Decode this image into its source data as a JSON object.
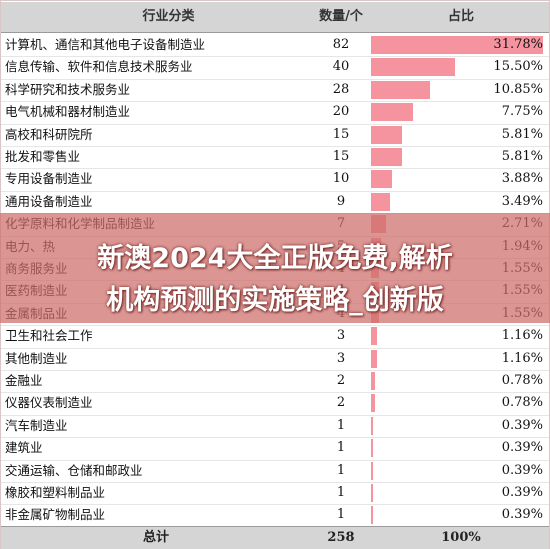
{
  "chart_data": {
    "type": "table",
    "columns": [
      "行业分类",
      "数量/个",
      "占比"
    ],
    "rows": [
      {
        "industry": "计算机、通信和其他电子设备制造业",
        "count": "82",
        "share": "31.78%",
        "share_value": 31.78
      },
      {
        "industry": "信息传输、软件和信息技术服务业",
        "count": "40",
        "share": "15.50%",
        "share_value": 15.5
      },
      {
        "industry": "科学研究和技术服务业",
        "count": "28",
        "share": "10.85%",
        "share_value": 10.85
      },
      {
        "industry": "电气机械和器材制造业",
        "count": "20",
        "share": "7.75%",
        "share_value": 7.75
      },
      {
        "industry": "高校和科研院所",
        "count": "15",
        "share": "5.81%",
        "share_value": 5.81
      },
      {
        "industry": "批发和零售业",
        "count": "15",
        "share": "5.81%",
        "share_value": 5.81
      },
      {
        "industry": "专用设备制造业",
        "count": "10",
        "share": "3.88%",
        "share_value": 3.88
      },
      {
        "industry": "通用设备制造业",
        "count": "9",
        "share": "3.49%",
        "share_value": 3.49
      },
      {
        "industry": "化学原料和化学制品制造业",
        "count": "7",
        "share": "2.71%",
        "share_value": 2.71
      },
      {
        "industry": "电力、热",
        "count": "5",
        "share": "1.94%",
        "share_value": 1.94
      },
      {
        "industry": "商务服务业",
        "count": "4",
        "share": "1.55%",
        "share_value": 1.55
      },
      {
        "industry": "医药制造业",
        "count": "4",
        "share": "1.55%",
        "share_value": 1.55
      },
      {
        "industry": "金属制品业",
        "count": "4",
        "share": "1.55%",
        "share_value": 1.55
      },
      {
        "industry": "卫生和社会工作",
        "count": "3",
        "share": "1.16%",
        "share_value": 1.16
      },
      {
        "industry": "其他制造业",
        "count": "3",
        "share": "1.16%",
        "share_value": 1.16
      },
      {
        "industry": "金融业",
        "count": "2",
        "share": "0.78%",
        "share_value": 0.78
      },
      {
        "industry": "仪器仪表制造业",
        "count": "2",
        "share": "0.78%",
        "share_value": 0.78
      },
      {
        "industry": "汽车制造业",
        "count": "1",
        "share": "0.39%",
        "share_value": 0.39
      },
      {
        "industry": "建筑业",
        "count": "1",
        "share": "0.39%",
        "share_value": 0.39
      },
      {
        "industry": "交通运输、仓储和邮政业",
        "count": "1",
        "share": "0.39%",
        "share_value": 0.39
      },
      {
        "industry": "橡胶和塑料制品业",
        "count": "1",
        "share": "0.39%",
        "share_value": 0.39
      },
      {
        "industry": "非金属矿物制品业",
        "count": "1",
        "share": "0.39%",
        "share_value": 0.39
      }
    ],
    "total": {
      "label": "总计",
      "count": "258",
      "share": "100%"
    },
    "bar_color": "#f5949e",
    "bar_max": 31.78
  },
  "overlay": {
    "line1": "新澳2024大全正版免费,解析",
    "line2": "机构预测的实施策略_创新版"
  }
}
